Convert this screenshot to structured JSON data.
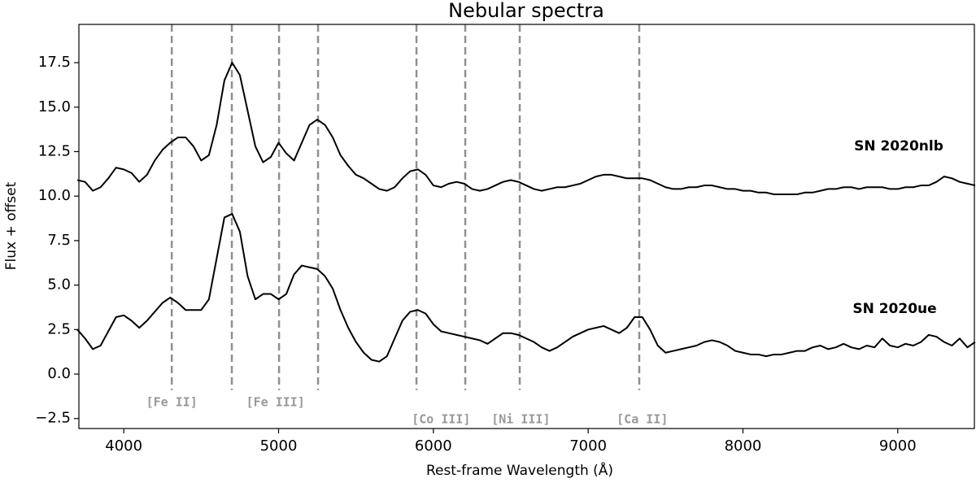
{
  "chart_data": {
    "type": "line",
    "title": "Nebular spectra",
    "x_label": "Rest-frame Wavelength (Å)",
    "y_label": "Flux + offset",
    "xlim": [
      3710,
      9495
    ],
    "ylim": [
      -3.06,
      19.65
    ],
    "xticks": [
      4000,
      5000,
      6000,
      7000,
      8000,
      9000
    ],
    "yticks": [
      {
        "value": -2.5,
        "label": "−2.5"
      },
      {
        "value": 0,
        "label": "0.0"
      },
      {
        "value": 2.5,
        "label": "2.5"
      },
      {
        "value": 5,
        "label": "5.0"
      },
      {
        "value": 7.5,
        "label": "7.5"
      },
      {
        "value": 10,
        "label": "10.0"
      },
      {
        "value": 12.5,
        "label": "12.5"
      },
      {
        "value": 15,
        "label": "15.0"
      },
      {
        "value": 17.5,
        "label": "17.5"
      }
    ],
    "x": [
      3700,
      3750,
      3800,
      3850,
      3900,
      3950,
      4000,
      4050,
      4100,
      4150,
      4200,
      4250,
      4300,
      4350,
      4400,
      4450,
      4500,
      4550,
      4600,
      4650,
      4700,
      4750,
      4800,
      4850,
      4900,
      4950,
      5000,
      5050,
      5100,
      5150,
      5200,
      5250,
      5300,
      5350,
      5400,
      5450,
      5500,
      5550,
      5600,
      5650,
      5700,
      5750,
      5800,
      5850,
      5900,
      5950,
      6000,
      6050,
      6100,
      6150,
      6200,
      6250,
      6300,
      6350,
      6400,
      6450,
      6500,
      6550,
      6600,
      6650,
      6700,
      6750,
      6800,
      6850,
      6900,
      6950,
      7000,
      7050,
      7100,
      7150,
      7200,
      7250,
      7300,
      7350,
      7400,
      7450,
      7500,
      7550,
      7600,
      7650,
      7700,
      7750,
      7800,
      7850,
      7900,
      7950,
      8000,
      8050,
      8100,
      8150,
      8200,
      8250,
      8300,
      8350,
      8400,
      8450,
      8500,
      8550,
      8600,
      8650,
      8700,
      8750,
      8800,
      8850,
      8900,
      8950,
      9000,
      9050,
      9100,
      9150,
      9200,
      9250,
      9300,
      9350,
      9400,
      9450,
      9500
    ],
    "series": [
      {
        "name": "SN 2020nlb",
        "color": "#000000",
        "values": [
          10.9,
          10.8,
          10.3,
          10.5,
          11.0,
          11.6,
          11.5,
          11.3,
          10.8,
          11.2,
          12.0,
          12.6,
          13.0,
          13.3,
          13.3,
          12.8,
          12.0,
          12.3,
          14.0,
          16.5,
          17.5,
          16.8,
          14.8,
          12.8,
          11.9,
          12.2,
          13.0,
          12.4,
          12.0,
          13.0,
          14.0,
          14.3,
          14.0,
          13.3,
          12.3,
          11.7,
          11.2,
          11.0,
          10.7,
          10.4,
          10.3,
          10.5,
          11.0,
          11.4,
          11.5,
          11.2,
          10.6,
          10.5,
          10.7,
          10.8,
          10.7,
          10.4,
          10.3,
          10.4,
          10.6,
          10.8,
          10.9,
          10.8,
          10.6,
          10.4,
          10.3,
          10.4,
          10.5,
          10.5,
          10.6,
          10.7,
          10.9,
          11.1,
          11.2,
          11.2,
          11.1,
          11.0,
          11.0,
          11.0,
          10.9,
          10.7,
          10.5,
          10.4,
          10.4,
          10.5,
          10.5,
          10.6,
          10.6,
          10.5,
          10.4,
          10.4,
          10.3,
          10.3,
          10.2,
          10.2,
          10.1,
          10.1,
          10.1,
          10.1,
          10.2,
          10.2,
          10.3,
          10.4,
          10.4,
          10.5,
          10.5,
          10.4,
          10.5,
          10.5,
          10.5,
          10.4,
          10.4,
          10.5,
          10.5,
          10.6,
          10.6,
          10.8,
          11.1,
          11.0,
          10.8,
          10.7,
          10.6
        ]
      },
      {
        "name": "SN 2020ue",
        "color": "#000000",
        "values": [
          2.5,
          2.0,
          1.4,
          1.6,
          2.4,
          3.2,
          3.3,
          3.0,
          2.6,
          3.0,
          3.5,
          4.0,
          4.3,
          4.0,
          3.6,
          3.6,
          3.6,
          4.2,
          6.5,
          8.8,
          9.0,
          8.0,
          5.5,
          4.2,
          4.5,
          4.5,
          4.2,
          4.5,
          5.6,
          6.1,
          6.0,
          5.9,
          5.5,
          4.8,
          3.6,
          2.6,
          1.8,
          1.2,
          0.8,
          0.7,
          1.0,
          2.0,
          3.0,
          3.5,
          3.6,
          3.4,
          2.8,
          2.4,
          2.3,
          2.2,
          2.1,
          2.0,
          1.9,
          1.7,
          2.0,
          2.3,
          2.3,
          2.2,
          2.0,
          1.8,
          1.5,
          1.3,
          1.5,
          1.8,
          2.1,
          2.3,
          2.5,
          2.6,
          2.7,
          2.5,
          2.3,
          2.6,
          3.2,
          3.2,
          2.5,
          1.6,
          1.2,
          1.3,
          1.4,
          1.5,
          1.6,
          1.8,
          1.9,
          1.8,
          1.6,
          1.3,
          1.2,
          1.1,
          1.1,
          1.0,
          1.1,
          1.1,
          1.2,
          1.3,
          1.3,
          1.5,
          1.6,
          1.4,
          1.5,
          1.7,
          1.5,
          1.4,
          1.6,
          1.5,
          2.0,
          1.6,
          1.5,
          1.7,
          1.6,
          1.8,
          2.2,
          2.1,
          1.8,
          1.6,
          2.0,
          1.5,
          1.8
        ]
      }
    ],
    "vlines": [
      4310,
      4698,
      5003,
      5255,
      5891,
      6206,
      6558,
      7330
    ],
    "vline_color": "#909090",
    "annotations": [
      {
        "text": "[Fe II]",
        "x": 4310
      },
      {
        "text": "[Fe III]",
        "x": 4980
      },
      {
        "text": "[Co III]",
        "x": 6050
      },
      {
        "text": "[Ni III]",
        "x": 6565
      },
      {
        "text": "[Ca II]",
        "x": 7350
      }
    ]
  }
}
